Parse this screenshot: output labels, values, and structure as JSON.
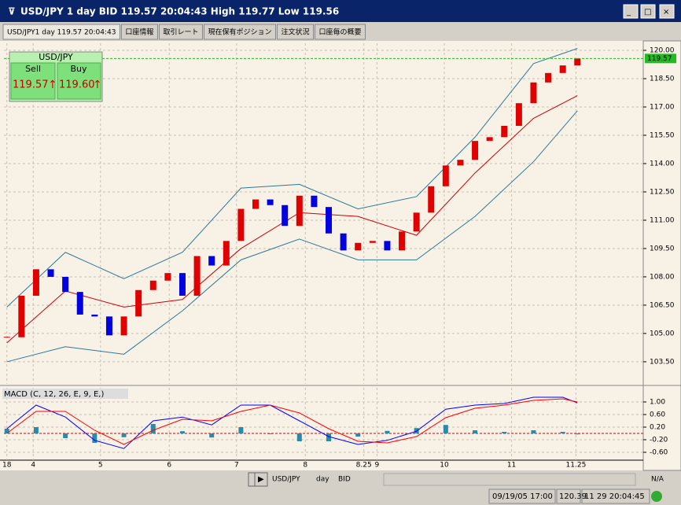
{
  "window": {
    "title": "USD/JPY 1 day BID 119.57 20:04:43 High 119.77 Low 119.56"
  },
  "tabs": [
    "USD/JPY1 day 119.57 20:04:43",
    "口座情報",
    "取引レート",
    "現在保有ポジション",
    "注文状況",
    "口座毎の概要"
  ],
  "quote": {
    "title": "USD/JPY",
    "sell_label": "Sell",
    "buy_label": "Buy",
    "sell": "119.57",
    "buy": "119.60",
    "sell_arrow": "↑",
    "buy_arrow": "↑"
  },
  "chart_data": [
    {
      "type": "candlestick",
      "up_color": "#e00000",
      "down_color": "#0000e0",
      "x": [
        0,
        1,
        2,
        3,
        4,
        5,
        6,
        7,
        8,
        9,
        10,
        11,
        12,
        13,
        14,
        15,
        16,
        17,
        18,
        19,
        20,
        21,
        22,
        23,
        24,
        25,
        26,
        27,
        28,
        29,
        30,
        31,
        32,
        33,
        34,
        35,
        36,
        37,
        38,
        39
      ],
      "values": [
        104.8,
        107.0,
        108.4,
        108.0,
        107.2,
        106.0,
        105.9,
        104.9,
        105.9,
        107.3,
        107.8,
        108.2,
        107.0,
        109.1,
        108.6,
        109.9,
        111.6,
        112.1,
        111.8,
        110.7,
        112.3,
        111.7,
        110.3,
        109.4,
        109.8,
        109.9,
        109.4,
        110.4,
        111.4,
        112.8,
        113.9,
        114.2,
        115.2,
        115.4,
        116.0,
        117.2,
        118.3,
        118.8,
        119.2,
        119.57
      ],
      "series": [
        {
          "color": "#2a7a9a",
          "x": [
            0,
            4,
            8,
            12,
            16,
            20,
            24,
            28,
            32,
            36,
            39
          ],
          "values": [
            106.4,
            109.3,
            107.9,
            109.3,
            112.7,
            112.9,
            111.6,
            112.25,
            115.4,
            119.3,
            120.1
          ]
        },
        {
          "color": "#2a7a9a",
          "x": [
            0,
            4,
            8,
            12,
            16,
            20,
            24,
            28,
            32,
            36,
            39
          ],
          "values": [
            103.5,
            104.3,
            103.9,
            106.2,
            108.9,
            110.0,
            108.9,
            108.9,
            111.2,
            114.1,
            116.8
          ]
        },
        {
          "color": "#d00000",
          "x": [
            0,
            4,
            8,
            12,
            16,
            20,
            24,
            28,
            32,
            36,
            39
          ],
          "values": [
            104.5,
            107.25,
            106.4,
            106.8,
            109.5,
            111.4,
            111.2,
            110.2,
            113.5,
            116.4,
            117.6
          ]
        }
      ],
      "last": 119.57,
      "last_color": "#22bb22",
      "xlim": [
        -0.2,
        43.5
      ],
      "ylim": [
        102.33,
        120.375
      ],
      "yticks": [
        {
          "value": 120,
          "label": "120.00"
        },
        {
          "value": 118.5,
          "label": "118.50"
        },
        {
          "value": 117,
          "label": "117.00"
        },
        {
          "value": 115.5,
          "label": "115.50"
        },
        {
          "value": 114,
          "label": "114.00"
        },
        {
          "value": 112.5,
          "label": "112.50"
        },
        {
          "value": 111,
          "label": "111.00"
        },
        {
          "value": 109.5,
          "label": "109.50"
        },
        {
          "value": 108,
          "label": "108.00"
        },
        {
          "value": 106.5,
          "label": "106.50"
        },
        {
          "value": 105,
          "label": "105.00"
        },
        {
          "value": 103.5,
          "label": "103.50"
        }
      ],
      "xticks": [
        {
          "value": 0,
          "label": "18"
        },
        {
          "value": 1.8,
          "label": "4"
        },
        {
          "value": 6.4,
          "label": "5"
        },
        {
          "value": 11.1,
          "label": "6"
        },
        {
          "value": 15.7,
          "label": "7"
        },
        {
          "value": 20.4,
          "label": "8"
        },
        {
          "value": 24.4,
          "label": "8.25"
        },
        {
          "value": 25.3,
          "label": "9"
        },
        {
          "value": 29.9,
          "label": "10"
        },
        {
          "value": 34.5,
          "label": "11"
        },
        {
          "value": 38.9,
          "label": "11.25"
        }
      ],
      "grid": true
    },
    {
      "type": "line",
      "title": "MACD (C, 12, 26, E, 9, E,)",
      "series": [
        {
          "color": "#0000ff",
          "x": [
            0,
            2,
            4,
            6,
            8,
            10,
            12,
            14,
            16,
            18,
            20,
            22,
            24,
            26,
            28,
            30,
            32,
            34,
            36,
            38,
            39
          ],
          "values": [
            0.15,
            0.9,
            0.52,
            -0.22,
            -0.48,
            0.4,
            0.52,
            0.27,
            0.9,
            0.9,
            0.4,
            -0.1,
            -0.35,
            -0.22,
            0.07,
            0.77,
            0.9,
            0.95,
            1.15,
            1.15,
            0.97
          ]
        },
        {
          "color": "#ff0000",
          "x": [
            0,
            2,
            4,
            6,
            8,
            10,
            12,
            14,
            16,
            18,
            20,
            22,
            24,
            26,
            28,
            30,
            32,
            34,
            36,
            38,
            39
          ],
          "values": [
            0.0,
            0.7,
            0.7,
            0.1,
            -0.35,
            0.1,
            0.45,
            0.4,
            0.7,
            0.9,
            0.65,
            0.15,
            -0.25,
            -0.3,
            -0.1,
            0.5,
            0.8,
            0.9,
            1.05,
            1.1,
            1.0
          ]
        }
      ],
      "histogram": {
        "color": "#2a8aaa",
        "x": [
          0,
          2,
          4,
          6,
          8,
          10,
          12,
          14,
          16,
          18,
          20,
          22,
          24,
          26,
          28,
          30,
          32,
          34,
          36,
          38,
          39
        ],
        "values": [
          0.15,
          0.2,
          -0.15,
          -0.3,
          -0.12,
          0.3,
          0.07,
          -0.13,
          0.2,
          0.0,
          -0.25,
          -0.25,
          -0.1,
          0.08,
          0.17,
          0.27,
          0.1,
          0.05,
          0.1,
          0.05,
          -0.03
        ]
      },
      "zero_color": "#dd0000",
      "xlim": [
        -0.2,
        43.5
      ],
      "ylim": [
        -0.85,
        1.45
      ],
      "yticks": [
        {
          "value": 1,
          "label": "1.00"
        },
        {
          "value": 0.6,
          "label": "0.60"
        },
        {
          "value": 0.2,
          "label": "0.20"
        },
        {
          "value": -0.2,
          "label": "-0.20"
        },
        {
          "value": -0.6,
          "label": "-0.60"
        }
      ],
      "grid": true
    }
  ],
  "toolbar": {
    "symbol": "USD/JPY",
    "period": "day",
    "side": "BID",
    "mode": "N/A"
  },
  "status": [
    "09/19/05 17:00",
    "120.39",
    "11 29 20:04:45"
  ]
}
